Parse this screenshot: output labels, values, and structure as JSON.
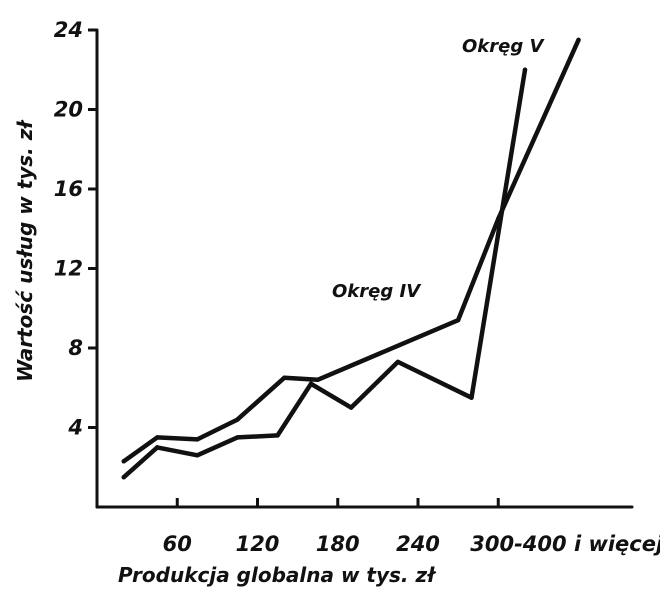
{
  "chart_data": {
    "type": "line",
    "title": "",
    "xlabel": "Produkcja globalna w tys. zł",
    "ylabel": "Wartość usług w tys. zł",
    "x_tick_labels": [
      "60",
      "120",
      "180",
      "240",
      "300-400 i więcej"
    ],
    "x_ticks": [
      60,
      120,
      180,
      240,
      300
    ],
    "y_ticks": [
      4,
      8,
      12,
      16,
      20,
      24
    ],
    "xlim": [
      0,
      400
    ],
    "ylim": [
      0,
      24
    ],
    "grid": false,
    "legend": "none",
    "series": [
      {
        "name": "Okręg IV",
        "x": [
          20,
          45,
          75,
          105,
          140,
          165,
          270,
          300,
          360
        ],
        "y": [
          2.3,
          3.5,
          3.4,
          4.4,
          6.5,
          6.4,
          9.4,
          14.5,
          23.5
        ]
      },
      {
        "name": "Okręg V",
        "x": [
          20,
          45,
          75,
          105,
          135,
          160,
          190,
          225,
          280,
          320
        ],
        "y": [
          1.5,
          3.0,
          2.6,
          3.5,
          3.6,
          6.2,
          5.0,
          7.3,
          5.5,
          22.0
        ]
      }
    ]
  }
}
